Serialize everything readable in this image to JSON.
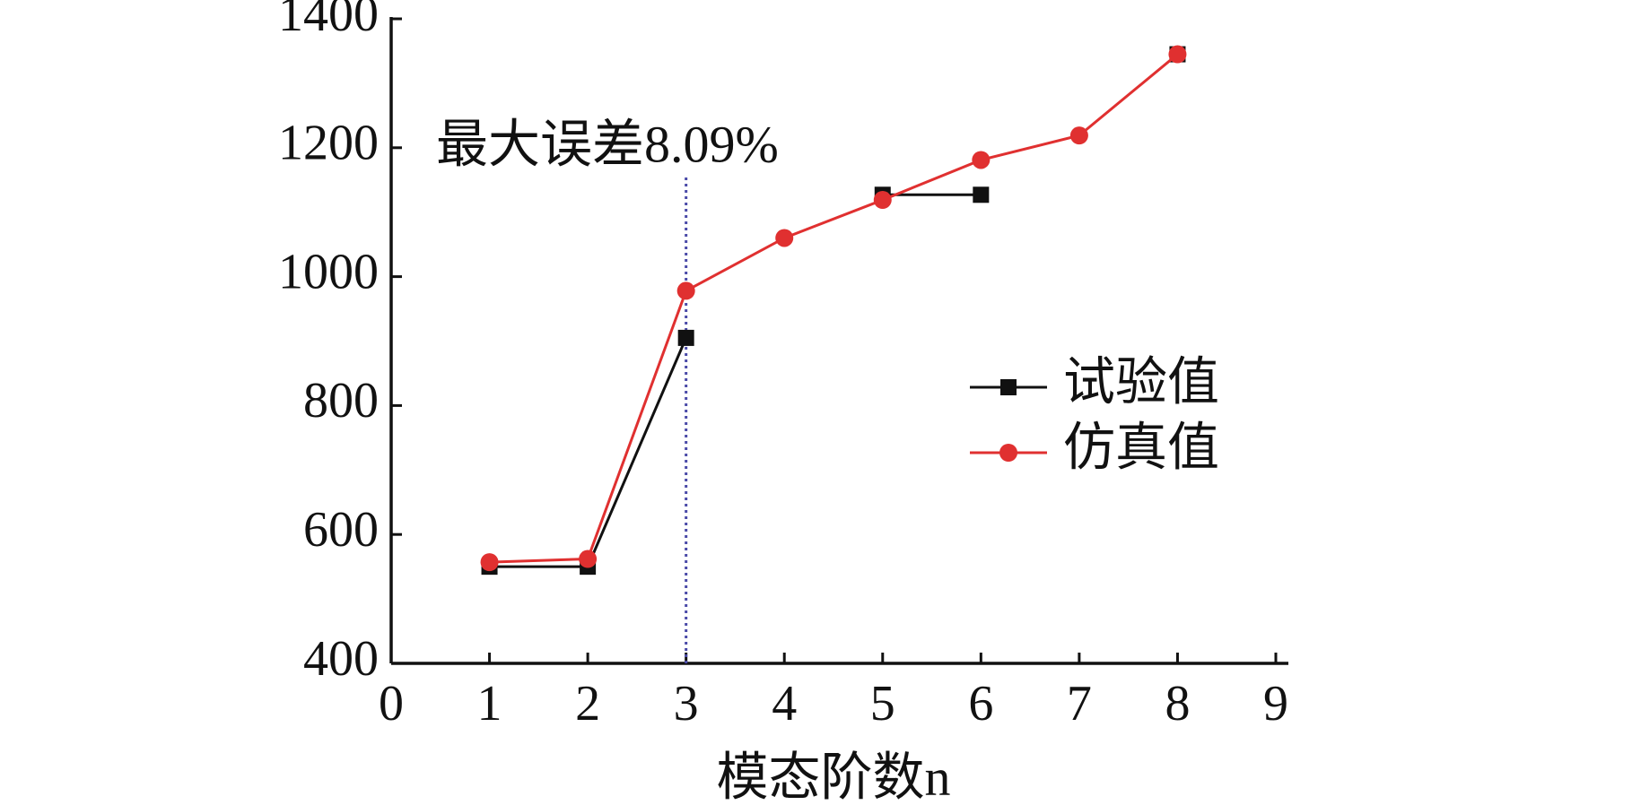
{
  "chart_data": {
    "type": "line",
    "xlabel": "模态阶数n",
    "x": [
      1,
      2,
      3,
      4,
      5,
      6,
      7,
      8
    ],
    "series": [
      {
        "name": "试验值",
        "color": "#111111",
        "marker": "square",
        "values": [
          550,
          550,
          905,
          null,
          1127,
          1127,
          null,
          1345
        ]
      },
      {
        "name": "仿真值",
        "color": "#e03030",
        "marker": "circle",
        "values": [
          557,
          562,
          978,
          1060,
          1119,
          1181,
          1219,
          1345
        ]
      }
    ],
    "annotation": {
      "text": "最大误差8.09%",
      "x": 3
    },
    "xlim": [
      0,
      9
    ],
    "xticks": [
      0,
      1,
      2,
      3,
      4,
      5,
      6,
      7,
      8,
      9
    ],
    "ylim": [
      400,
      1400
    ],
    "yticks": [
      400,
      600,
      800,
      1000,
      1200,
      1400
    ],
    "legend": "right"
  }
}
